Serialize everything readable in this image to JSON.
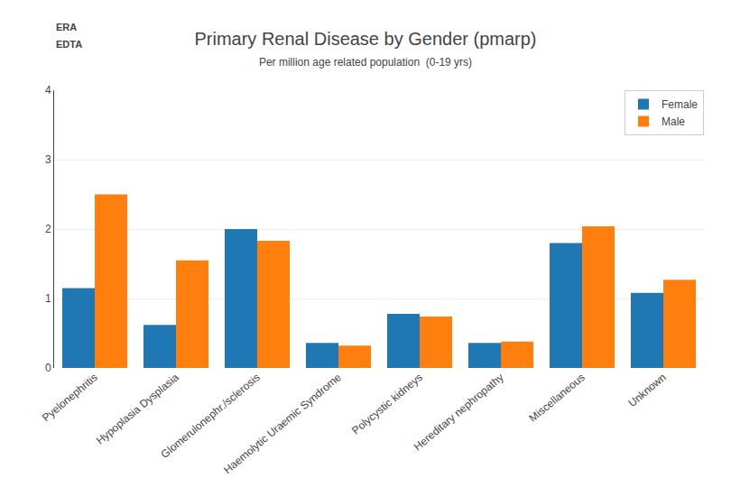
{
  "chart_data": {
    "type": "bar",
    "title": "Primary Renal Disease by Gender (pmarp)",
    "subtitle": "Per million age related population  (0-19 yrs)",
    "annotations": [
      "ERA",
      "EDTA"
    ],
    "categories": [
      "Pyelonephritis",
      "Hypoplasia Dysplasia",
      "Glomerulonephr./sclerosis",
      "Haemolytic Uraemic Syndrome",
      "Polycystic kidneys",
      "Hereditary nephropathy",
      "Miscellaneous",
      "Unknown"
    ],
    "series": [
      {
        "name": "Female",
        "values": [
          1.15,
          0.62,
          2.0,
          0.36,
          0.78,
          0.36,
          1.8,
          1.08
        ]
      },
      {
        "name": "Male",
        "values": [
          2.5,
          1.55,
          1.83,
          0.32,
          0.74,
          0.38,
          2.04,
          1.27
        ]
      }
    ],
    "ylim": [
      0,
      4
    ],
    "yticks": [
      0,
      1,
      2,
      3,
      4
    ],
    "grid": true,
    "legend": "upper right"
  }
}
